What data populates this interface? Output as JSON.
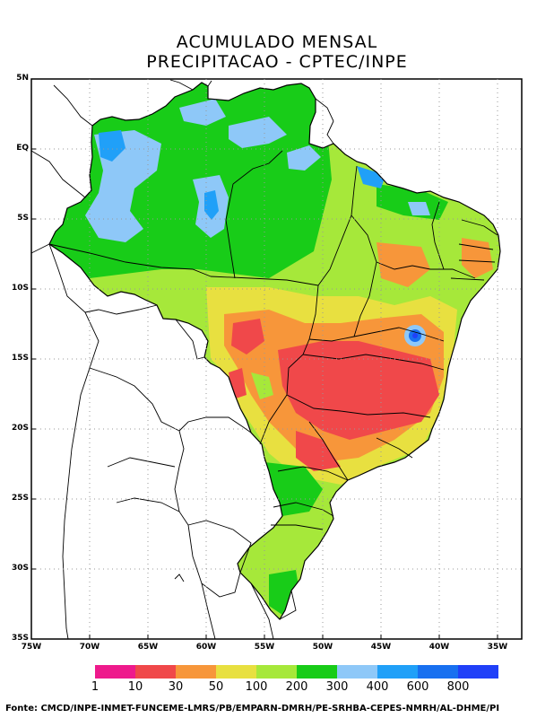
{
  "title": {
    "line1": "ACUMULADO MENSAL",
    "line2": "PRECIPITACAO - CPTEC/INPE"
  },
  "map": {
    "lat_ticks": [
      "5N",
      "EQ",
      "5S",
      "10S",
      "15S",
      "20S",
      "25S",
      "30S",
      "35S"
    ],
    "lon_ticks": [
      "75W",
      "70W",
      "65W",
      "60W",
      "55W",
      "50W",
      "45W",
      "40W",
      "35W"
    ],
    "lat_range": [
      -35,
      5
    ],
    "lon_range": [
      -75,
      -33
    ]
  },
  "legend": {
    "labels": [
      "1",
      "10",
      "30",
      "50",
      "100",
      "200",
      "300",
      "400",
      "600",
      "800"
    ],
    "colors": [
      "#ee1a8c",
      "#f0484a",
      "#f7963a",
      "#e8e040",
      "#a6e83a",
      "#18cc18",
      "#8ec8f8",
      "#20a0f8",
      "#1870f0",
      "#2040f8"
    ]
  },
  "source": "Fonte: CMCD/INPE-INMET-FUNCEME-LMRS/PB/EMPARN-DMRH/PE-SRHBA-CEPES-NMRH/AL-DHME/PI"
}
